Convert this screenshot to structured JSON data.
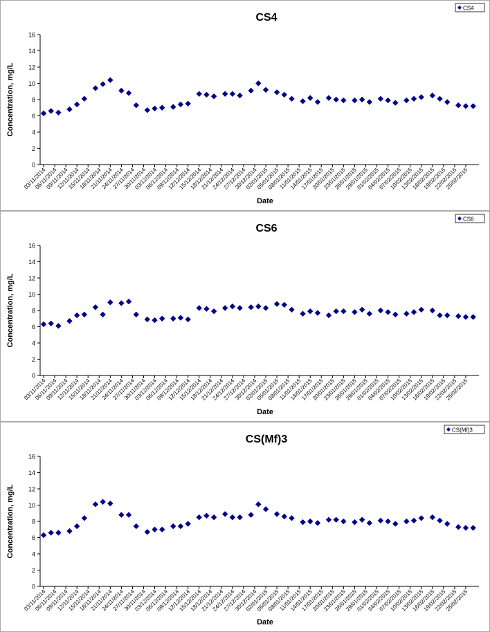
{
  "chart_data": [
    {
      "type": "scatter",
      "title": "CS4",
      "xlabel": "Date",
      "ylabel": "Concentration, mg/L",
      "ylim": [
        0,
        16
      ],
      "yticks": [
        "0",
        "2",
        "4",
        "6",
        "8",
        "10",
        "12",
        "14",
        "16"
      ],
      "grid": false,
      "legend_position": "top-right",
      "xticks": [
        "03/11/2014",
        "06/11/2014",
        "09/11/2014",
        "12/11/2014",
        "15/11/2014",
        "18/11/2014",
        "21/11/2014",
        "24/11/2014",
        "27/11/2014",
        "30/11/2014",
        "03/12/2014",
        "06/12/2014",
        "09/12/2014",
        "12/12/2014",
        "15/12/2014",
        "18/12/2014",
        "21/12/2014",
        "24/12/2014",
        "27/12/2014",
        "30/12/2014",
        "02/01/2015",
        "05/01/2015",
        "08/01/2015",
        "11/01/2015",
        "14/01/2015",
        "17/01/2015",
        "20/01/2015",
        "23/01/2015",
        "26/01/2015",
        "29/01/2015",
        "01/02/2015",
        "04/02/2015",
        "07/02/2015",
        "10/02/2015",
        "13/02/2015",
        "16/02/2015",
        "19/02/2015",
        "22/02/2015",
        "25/02/2015"
      ],
      "series": [
        {
          "name": "CS4",
          "color": "#00008B",
          "points": [
            {
              "x": "03/11/2014",
              "y": 6.3
            },
            {
              "x": "05/11/2014",
              "y": 6.6
            },
            {
              "x": "07/11/2014",
              "y": 6.4
            },
            {
              "x": "10/11/2014",
              "y": 6.8
            },
            {
              "x": "12/11/2014",
              "y": 7.4
            },
            {
              "x": "14/11/2014",
              "y": 8.1
            },
            {
              "x": "17/11/2014",
              "y": 9.4
            },
            {
              "x": "19/11/2014",
              "y": 9.9
            },
            {
              "x": "21/11/2014",
              "y": 10.4
            },
            {
              "x": "24/11/2014",
              "y": 9.1
            },
            {
              "x": "26/11/2014",
              "y": 8.8
            },
            {
              "x": "28/11/2014",
              "y": 7.3
            },
            {
              "x": "01/12/2014",
              "y": 6.7
            },
            {
              "x": "03/12/2014",
              "y": 6.9
            },
            {
              "x": "05/12/2014",
              "y": 7.0
            },
            {
              "x": "08/12/2014",
              "y": 7.1
            },
            {
              "x": "10/12/2014",
              "y": 7.4
            },
            {
              "x": "12/12/2014",
              "y": 7.5
            },
            {
              "x": "15/12/2014",
              "y": 8.7
            },
            {
              "x": "17/12/2014",
              "y": 8.6
            },
            {
              "x": "19/12/2014",
              "y": 8.4
            },
            {
              "x": "22/12/2014",
              "y": 8.7
            },
            {
              "x": "24/12/2014",
              "y": 8.7
            },
            {
              "x": "26/12/2014",
              "y": 8.5
            },
            {
              "x": "29/12/2014",
              "y": 9.1
            },
            {
              "x": "31/12/2014",
              "y": 10.0
            },
            {
              "x": "02/01/2015",
              "y": 9.2
            },
            {
              "x": "05/01/2015",
              "y": 8.9
            },
            {
              "x": "07/01/2015",
              "y": 8.6
            },
            {
              "x": "09/01/2015",
              "y": 8.1
            },
            {
              "x": "12/01/2015",
              "y": 7.8
            },
            {
              "x": "14/01/2015",
              "y": 8.2
            },
            {
              "x": "16/01/2015",
              "y": 7.7
            },
            {
              "x": "19/01/2015",
              "y": 8.2
            },
            {
              "x": "21/01/2015",
              "y": 8.0
            },
            {
              "x": "23/01/2015",
              "y": 7.9
            },
            {
              "x": "26/01/2015",
              "y": 7.9
            },
            {
              "x": "28/01/2015",
              "y": 8.0
            },
            {
              "x": "30/01/2015",
              "y": 7.7
            },
            {
              "x": "02/02/2015",
              "y": 8.1
            },
            {
              "x": "04/02/2015",
              "y": 7.9
            },
            {
              "x": "06/02/2015",
              "y": 7.6
            },
            {
              "x": "09/02/2015",
              "y": 7.9
            },
            {
              "x": "11/02/2015",
              "y": 8.1
            },
            {
              "x": "13/02/2015",
              "y": 8.3
            },
            {
              "x": "16/02/2015",
              "y": 8.5
            },
            {
              "x": "18/02/2015",
              "y": 8.1
            },
            {
              "x": "20/02/2015",
              "y": 7.7
            },
            {
              "x": "23/02/2015",
              "y": 7.3
            },
            {
              "x": "25/02/2015",
              "y": 7.2
            },
            {
              "x": "27/02/2015",
              "y": 7.2
            }
          ]
        }
      ]
    },
    {
      "type": "scatter",
      "title": "CS6",
      "xlabel": "Date",
      "ylabel": "Concentration, mg/L",
      "ylim": [
        0,
        16
      ],
      "yticks": [
        "0",
        "2",
        "4",
        "6",
        "8",
        "10",
        "12",
        "14",
        "16"
      ],
      "grid": false,
      "legend_position": "top-right",
      "xticks": [
        "03/11/2014",
        "06/11/2014",
        "09/11/2014",
        "12/11/2014",
        "15/11/2014",
        "18/11/2014",
        "21/11/2014",
        "24/11/2014",
        "27/11/2014",
        "30/11/2014",
        "03/12/2014",
        "06/12/2014",
        "09/12/2014",
        "12/12/2014",
        "15/12/2014",
        "18/12/2014",
        "21/12/2014",
        "24/12/2014",
        "27/12/2014",
        "30/12/2014",
        "02/01/2015",
        "05/01/2015",
        "08/01/2015",
        "11/01/2015",
        "14/01/2015",
        "17/01/2015",
        "20/01/2015",
        "23/01/2015",
        "26/01/2015",
        "29/01/2015",
        "01/02/2015",
        "04/02/2015",
        "07/02/2015",
        "10/02/2015",
        "13/02/2015",
        "16/02/2015",
        "19/02/2015",
        "22/02/2015",
        "25/02/2015"
      ],
      "series": [
        {
          "name": "CS6",
          "color": "#00008B",
          "points": [
            {
              "x": "03/11/2014",
              "y": 6.3
            },
            {
              "x": "05/11/2014",
              "y": 6.4
            },
            {
              "x": "07/11/2014",
              "y": 6.1
            },
            {
              "x": "10/11/2014",
              "y": 6.7
            },
            {
              "x": "12/11/2014",
              "y": 7.4
            },
            {
              "x": "14/11/2014",
              "y": 7.5
            },
            {
              "x": "17/11/2014",
              "y": 8.4
            },
            {
              "x": "19/11/2014",
              "y": 7.5
            },
            {
              "x": "21/11/2014",
              "y": 9.0
            },
            {
              "x": "24/11/2014",
              "y": 8.9
            },
            {
              "x": "26/11/2014",
              "y": 9.1
            },
            {
              "x": "28/11/2014",
              "y": 7.5
            },
            {
              "x": "01/12/2014",
              "y": 6.9
            },
            {
              "x": "03/12/2014",
              "y": 6.8
            },
            {
              "x": "05/12/2014",
              "y": 7.0
            },
            {
              "x": "08/12/2014",
              "y": 7.0
            },
            {
              "x": "10/12/2014",
              "y": 7.1
            },
            {
              "x": "12/12/2014",
              "y": 6.9
            },
            {
              "x": "15/12/2014",
              "y": 8.3
            },
            {
              "x": "17/12/2014",
              "y": 8.2
            },
            {
              "x": "19/12/2014",
              "y": 7.9
            },
            {
              "x": "22/12/2014",
              "y": 8.3
            },
            {
              "x": "24/12/2014",
              "y": 8.5
            },
            {
              "x": "26/12/2014",
              "y": 8.3
            },
            {
              "x": "29/12/2014",
              "y": 8.4
            },
            {
              "x": "31/12/2014",
              "y": 8.5
            },
            {
              "x": "02/01/2015",
              "y": 8.3
            },
            {
              "x": "05/01/2015",
              "y": 8.8
            },
            {
              "x": "07/01/2015",
              "y": 8.7
            },
            {
              "x": "09/01/2015",
              "y": 8.1
            },
            {
              "x": "12/01/2015",
              "y": 7.6
            },
            {
              "x": "14/01/2015",
              "y": 7.9
            },
            {
              "x": "16/01/2015",
              "y": 7.7
            },
            {
              "x": "19/01/2015",
              "y": 7.4
            },
            {
              "x": "21/01/2015",
              "y": 7.9
            },
            {
              "x": "23/01/2015",
              "y": 7.9
            },
            {
              "x": "26/01/2015",
              "y": 7.8
            },
            {
              "x": "28/01/2015",
              "y": 8.1
            },
            {
              "x": "30/01/2015",
              "y": 7.6
            },
            {
              "x": "02/02/2015",
              "y": 8.0
            },
            {
              "x": "04/02/2015",
              "y": 7.8
            },
            {
              "x": "06/02/2015",
              "y": 7.5
            },
            {
              "x": "09/02/2015",
              "y": 7.6
            },
            {
              "x": "11/02/2015",
              "y": 7.8
            },
            {
              "x": "13/02/2015",
              "y": 8.1
            },
            {
              "x": "16/02/2015",
              "y": 8.0
            },
            {
              "x": "18/02/2015",
              "y": 7.4
            },
            {
              "x": "20/02/2015",
              "y": 7.4
            },
            {
              "x": "23/02/2015",
              "y": 7.3
            },
            {
              "x": "25/02/2015",
              "y": 7.2
            },
            {
              "x": "27/02/2015",
              "y": 7.2
            }
          ]
        }
      ]
    },
    {
      "type": "scatter",
      "title": "CS(Mf)3",
      "xlabel": "Date",
      "ylabel": "Concentration, mg/L",
      "ylim": [
        0,
        16
      ],
      "yticks": [
        "0",
        "2",
        "4",
        "6",
        "8",
        "10",
        "12",
        "14",
        "16"
      ],
      "grid": false,
      "legend_position": "top-right",
      "xticks": [
        "03/11/2014",
        "06/11/2014",
        "09/11/2014",
        "12/11/2014",
        "15/11/2014",
        "18/11/2014",
        "21/11/2014",
        "24/11/2014",
        "27/11/2014",
        "30/11/2014",
        "03/12/2014",
        "06/12/2014",
        "09/12/2014",
        "12/12/2014",
        "15/12/2014",
        "18/12/2014",
        "21/12/2014",
        "24/12/2014",
        "27/12/2014",
        "30/12/2014",
        "02/01/2015",
        "05/01/2015",
        "08/01/2015",
        "11/01/2015",
        "14/01/2015",
        "17/01/2015",
        "20/01/2015",
        "23/01/2015",
        "26/01/2015",
        "29/01/2015",
        "01/02/2015",
        "04/02/2015",
        "07/02/2015",
        "10/02/2015",
        "13/02/2015",
        "16/02/2015",
        "19/02/2015",
        "22/02/2015",
        "25/02/2015"
      ],
      "series": [
        {
          "name": "CS(Mf)3",
          "color": "#00008B",
          "points": [
            {
              "x": "03/11/2014",
              "y": 6.3
            },
            {
              "x": "05/11/2014",
              "y": 6.6
            },
            {
              "x": "07/11/2014",
              "y": 6.6
            },
            {
              "x": "10/11/2014",
              "y": 6.8
            },
            {
              "x": "12/11/2014",
              "y": 7.4
            },
            {
              "x": "14/11/2014",
              "y": 8.4
            },
            {
              "x": "17/11/2014",
              "y": 10.1
            },
            {
              "x": "19/11/2014",
              "y": 10.4
            },
            {
              "x": "21/11/2014",
              "y": 10.2
            },
            {
              "x": "24/11/2014",
              "y": 8.8
            },
            {
              "x": "26/11/2014",
              "y": 8.8
            },
            {
              "x": "28/11/2014",
              "y": 7.4
            },
            {
              "x": "01/12/2014",
              "y": 6.7
            },
            {
              "x": "03/12/2014",
              "y": 7.0
            },
            {
              "x": "05/12/2014",
              "y": 7.0
            },
            {
              "x": "08/12/2014",
              "y": 7.4
            },
            {
              "x": "10/12/2014",
              "y": 7.4
            },
            {
              "x": "12/12/2014",
              "y": 7.7
            },
            {
              "x": "15/12/2014",
              "y": 8.5
            },
            {
              "x": "17/12/2014",
              "y": 8.7
            },
            {
              "x": "19/12/2014",
              "y": 8.5
            },
            {
              "x": "22/12/2014",
              "y": 8.9
            },
            {
              "x": "24/12/2014",
              "y": 8.5
            },
            {
              "x": "26/12/2014",
              "y": 8.5
            },
            {
              "x": "29/12/2014",
              "y": 8.8
            },
            {
              "x": "31/12/2014",
              "y": 10.1
            },
            {
              "x": "02/01/2015",
              "y": 9.5
            },
            {
              "x": "05/01/2015",
              "y": 8.9
            },
            {
              "x": "07/01/2015",
              "y": 8.6
            },
            {
              "x": "09/01/2015",
              "y": 8.4
            },
            {
              "x": "12/01/2015",
              "y": 7.9
            },
            {
              "x": "14/01/2015",
              "y": 8.0
            },
            {
              "x": "16/01/2015",
              "y": 7.8
            },
            {
              "x": "19/01/2015",
              "y": 8.2
            },
            {
              "x": "21/01/2015",
              "y": 8.2
            },
            {
              "x": "23/01/2015",
              "y": 8.0
            },
            {
              "x": "26/01/2015",
              "y": 7.9
            },
            {
              "x": "28/01/2015",
              "y": 8.2
            },
            {
              "x": "30/01/2015",
              "y": 7.8
            },
            {
              "x": "02/02/2015",
              "y": 8.1
            },
            {
              "x": "04/02/2015",
              "y": 8.0
            },
            {
              "x": "06/02/2015",
              "y": 7.7
            },
            {
              "x": "09/02/2015",
              "y": 8.0
            },
            {
              "x": "11/02/2015",
              "y": 8.1
            },
            {
              "x": "13/02/2015",
              "y": 8.4
            },
            {
              "x": "16/02/2015",
              "y": 8.5
            },
            {
              "x": "18/02/2015",
              "y": 8.1
            },
            {
              "x": "20/02/2015",
              "y": 7.7
            },
            {
              "x": "23/02/2015",
              "y": 7.3
            },
            {
              "x": "25/02/2015",
              "y": 7.2
            },
            {
              "x": "27/02/2015",
              "y": 7.2
            }
          ]
        }
      ]
    }
  ]
}
